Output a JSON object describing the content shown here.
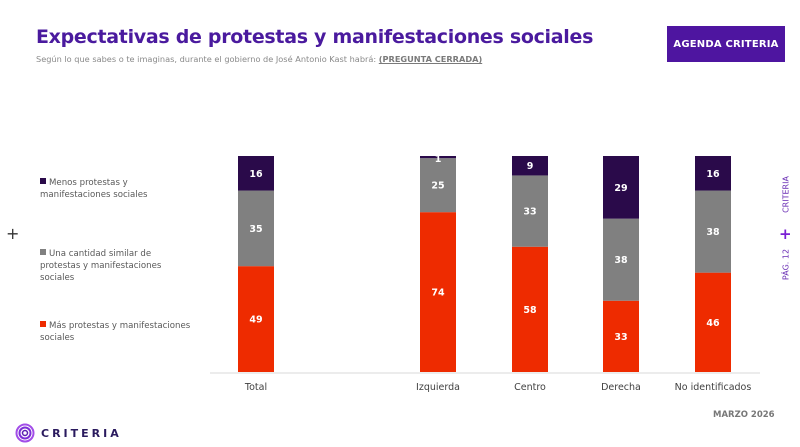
{
  "header": {
    "title": "Expectativas de protestas y manifestaciones sociales",
    "subtitle": "Según lo que sabes o te imaginas, durante el gobierno de José Antonio Kast habrá:",
    "subtitle_tag": "(PREGUNTA CERRADA)",
    "badge": "AGENDA CRITERIA"
  },
  "side": {
    "brand": "CRITERIA",
    "plus": "+",
    "page": "PÁG. 12"
  },
  "left_plus": "+",
  "footer": {
    "date": "MARZO 2026",
    "logo_text": "CRITERIA"
  },
  "colors": {
    "menos": "#2a0a4a",
    "similar": "#808080",
    "mas": "#ee2b00",
    "brand": "#4e15a0"
  },
  "chart_data": {
    "type": "bar",
    "stacked": true,
    "percent": true,
    "title": "Expectativas de protestas y manifestaciones sociales",
    "categories": [
      "Total",
      "Izquierda",
      "Centro",
      "Derecha",
      "No identificados"
    ],
    "series": [
      {
        "name": "Más protestas y manifestaciones sociales",
        "color": "#ee2b00",
        "values": [
          49,
          74,
          58,
          33,
          46
        ]
      },
      {
        "name": "Una cantidad similar de protestas y manifestaciones sociales",
        "color": "#808080",
        "values": [
          35,
          25,
          33,
          38,
          38
        ]
      },
      {
        "name": "Menos protestas y manifestaciones sociales",
        "color": "#2a0a4a",
        "values": [
          16,
          1,
          9,
          29,
          16
        ]
      }
    ],
    "ylim": [
      0,
      100
    ],
    "xlabel": "",
    "ylabel": "",
    "grid": false,
    "legend_position": "left",
    "data_labels": true
  }
}
